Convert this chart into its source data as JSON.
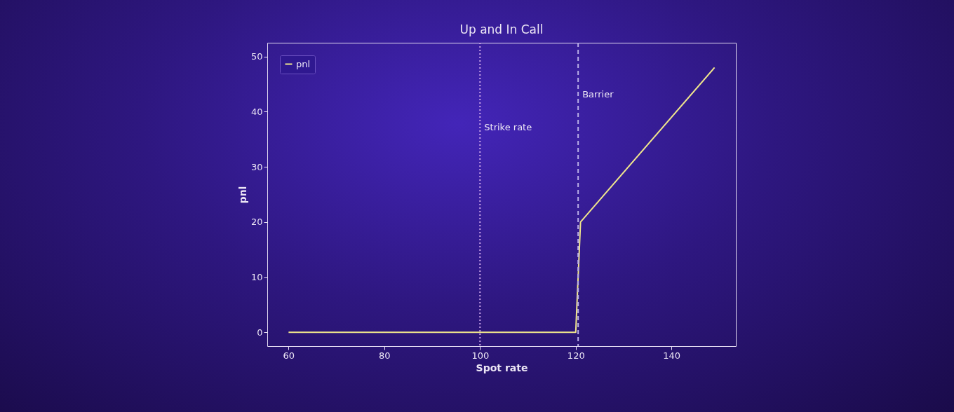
{
  "chart_data": {
    "type": "line",
    "title": "Up and In Call",
    "xlabel": "Spot rate",
    "ylabel": "pnl",
    "x": [
      60,
      120,
      121,
      149
    ],
    "series": [
      {
        "name": "pnl",
        "color": "#f0e68c",
        "values": [
          0,
          0,
          20,
          48
        ]
      }
    ],
    "xlim": [
      55.55,
      153.45
    ],
    "xticks": [
      60,
      80,
      100,
      120,
      140
    ],
    "ylim": [
      -2.5,
      52.5
    ],
    "yticks": [
      0,
      10,
      20,
      30,
      40,
      50
    ],
    "ref_lines": [
      {
        "axis": "x",
        "value": 100,
        "label": "Strike rate",
        "color": "#c8a2e8",
        "line_style": "dotted"
      },
      {
        "axis": "x",
        "value": 120.5,
        "label": "Barrier",
        "color": "#b9aee6",
        "line_style": "dashed"
      }
    ],
    "legend": "top left",
    "grid": false,
    "marker": "none",
    "line_style": "solid"
  }
}
